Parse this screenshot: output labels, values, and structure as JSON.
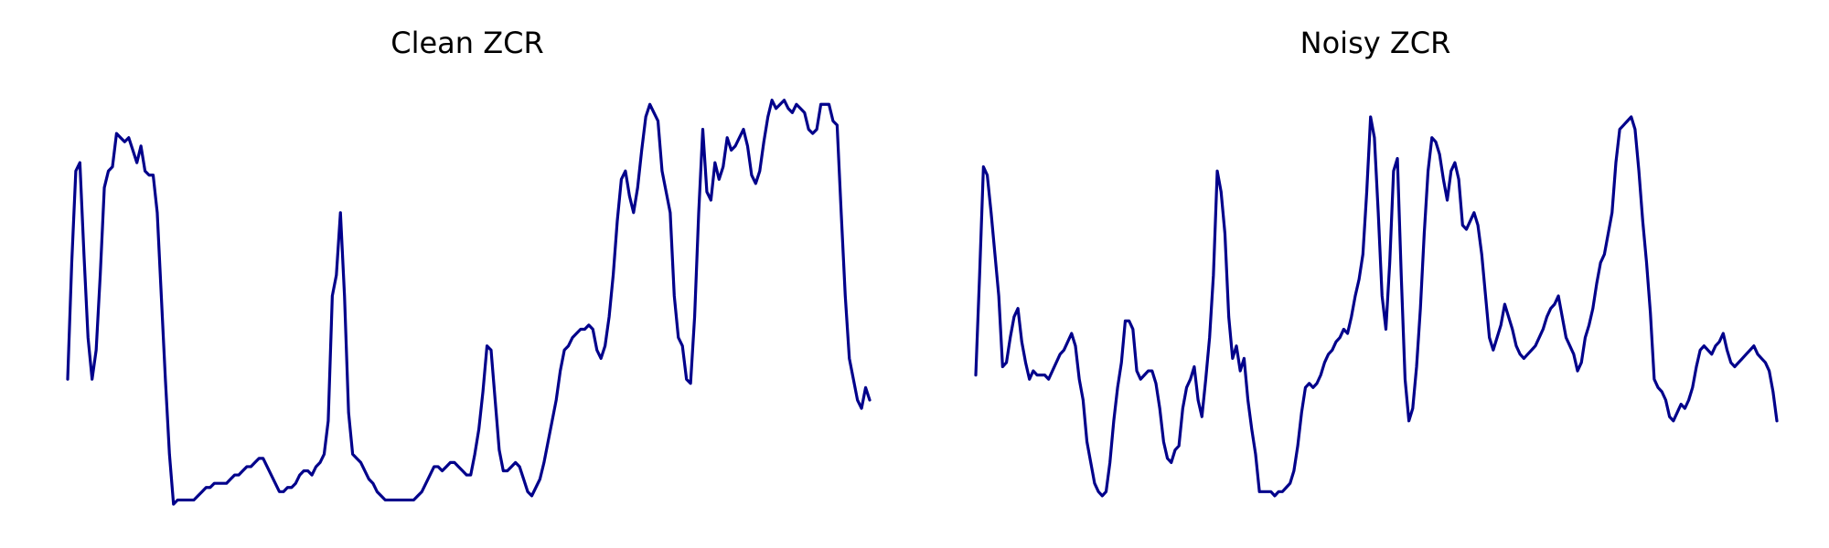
{
  "chart_data": [
    {
      "type": "line",
      "title": "Clean ZCR",
      "xlabel": "",
      "ylabel": "",
      "grid": false,
      "axes_visible": false,
      "color": "#00008B",
      "ylim": [
        0,
        100
      ],
      "values": [
        30,
        58,
        80,
        82,
        60,
        40,
        30,
        37,
        55,
        76,
        80,
        81,
        89,
        88,
        87,
        88,
        85,
        82,
        86,
        80,
        79,
        79,
        70,
        50,
        30,
        12,
        0,
        1,
        1,
        1,
        1,
        1,
        2,
        3,
        4,
        4,
        5,
        5,
        5,
        5,
        6,
        7,
        7,
        8,
        9,
        9,
        10,
        11,
        11,
        9,
        7,
        5,
        3,
        3,
        4,
        4,
        5,
        7,
        8,
        8,
        7,
        9,
        10,
        12,
        20,
        50,
        55,
        70,
        50,
        22,
        12,
        11,
        10,
        8,
        6,
        5,
        3,
        2,
        1,
        1,
        1,
        1,
        1,
        1,
        1,
        1,
        2,
        3,
        5,
        7,
        9,
        9,
        8,
        9,
        10,
        10,
        9,
        8,
        7,
        7,
        12,
        18,
        27,
        38,
        37,
        25,
        13,
        8,
        8,
        9,
        10,
        9,
        6,
        3,
        2,
        4,
        6,
        10,
        15,
        20,
        25,
        32,
        37,
        38,
        40,
        41,
        42,
        42,
        43,
        42,
        37,
        35,
        38,
        45,
        55,
        68,
        78,
        80,
        74,
        70,
        76,
        85,
        93,
        96,
        94,
        92,
        80,
        75,
        70,
        50,
        40,
        38,
        30,
        29,
        45,
        70,
        90,
        75,
        73,
        82,
        78,
        81,
        88,
        85,
        86,
        88,
        90,
        86,
        79,
        77,
        80,
        87,
        93,
        97,
        95,
        96,
        97,
        95,
        94,
        96,
        95,
        94,
        90,
        89,
        90,
        96,
        96,
        96,
        92,
        91,
        70,
        50,
        35,
        30,
        25,
        23,
        28,
        25
      ]
    },
    {
      "type": "line",
      "title": "Noisy ZCR",
      "xlabel": "",
      "ylabel": "",
      "grid": false,
      "axes_visible": false,
      "color": "#00008B",
      "ylim": [
        0,
        100
      ],
      "values": [
        31,
        55,
        81,
        79,
        70,
        60,
        50,
        33,
        34,
        40,
        45,
        47,
        39,
        34,
        30,
        32,
        31,
        31,
        31,
        30,
        32,
        34,
        36,
        37,
        39,
        41,
        38,
        30,
        25,
        15,
        10,
        5,
        3,
        2,
        3,
        10,
        20,
        28,
        34,
        44,
        44,
        42,
        32,
        30,
        31,
        32,
        32,
        29,
        23,
        15,
        11,
        10,
        13,
        14,
        23,
        28,
        30,
        33,
        25,
        21,
        30,
        40,
        55,
        80,
        75,
        65,
        45,
        35,
        38,
        32,
        35,
        25,
        18,
        12,
        3,
        3,
        3,
        3,
        2,
        3,
        3,
        4,
        5,
        8,
        14,
        22,
        28,
        29,
        28,
        29,
        31,
        34,
        36,
        37,
        39,
        40,
        42,
        41,
        45,
        50,
        54,
        60,
        75,
        93,
        88,
        70,
        50,
        42,
        58,
        80,
        83,
        55,
        30,
        20,
        23,
        33,
        47,
        65,
        80,
        88,
        87,
        84,
        78,
        73,
        80,
        82,
        78,
        67,
        66,
        68,
        70,
        67,
        60,
        50,
        40,
        37,
        40,
        43,
        48,
        45,
        42,
        38,
        36,
        35,
        36,
        37,
        38,
        40,
        42,
        45,
        47,
        48,
        50,
        45,
        40,
        38,
        36,
        32,
        34,
        40,
        43,
        47,
        53,
        58,
        60,
        65,
        70,
        82,
        90,
        91,
        92,
        93,
        90,
        80,
        68,
        58,
        46,
        30,
        28,
        27,
        25,
        21,
        20,
        22,
        24,
        23,
        25,
        28,
        33,
        37,
        38,
        37,
        36,
        38,
        39,
        41,
        37,
        34,
        33,
        34,
        35,
        36,
        37,
        38,
        36,
        35,
        34,
        32,
        27,
        20
      ]
    }
  ]
}
